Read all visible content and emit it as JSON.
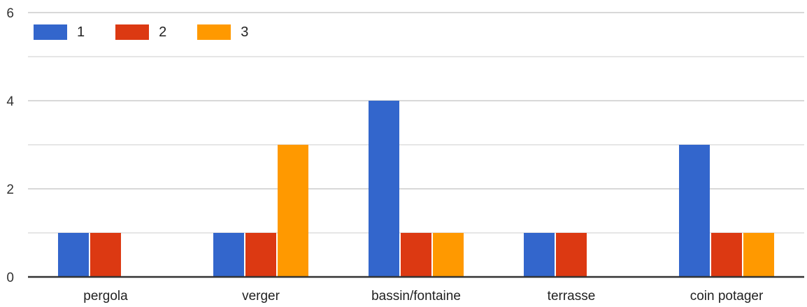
{
  "chart_data": {
    "type": "bar",
    "categories": [
      "pergola",
      "verger",
      "bassin/fontaine",
      "terrasse",
      "coin potager"
    ],
    "series": [
      {
        "name": "1",
        "values": [
          1,
          1,
          4,
          1,
          3
        ],
        "color": "#3366cc"
      },
      {
        "name": "2",
        "values": [
          1,
          1,
          1,
          1,
          1
        ],
        "color": "#dc3912"
      },
      {
        "name": "3",
        "values": [
          0,
          3,
          1,
          0,
          1
        ],
        "color": "#ff9900"
      }
    ],
    "ylim": [
      0,
      6
    ],
    "yticks": [
      0,
      2,
      4,
      6
    ],
    "grid": true,
    "legend_position": "top-left"
  }
}
